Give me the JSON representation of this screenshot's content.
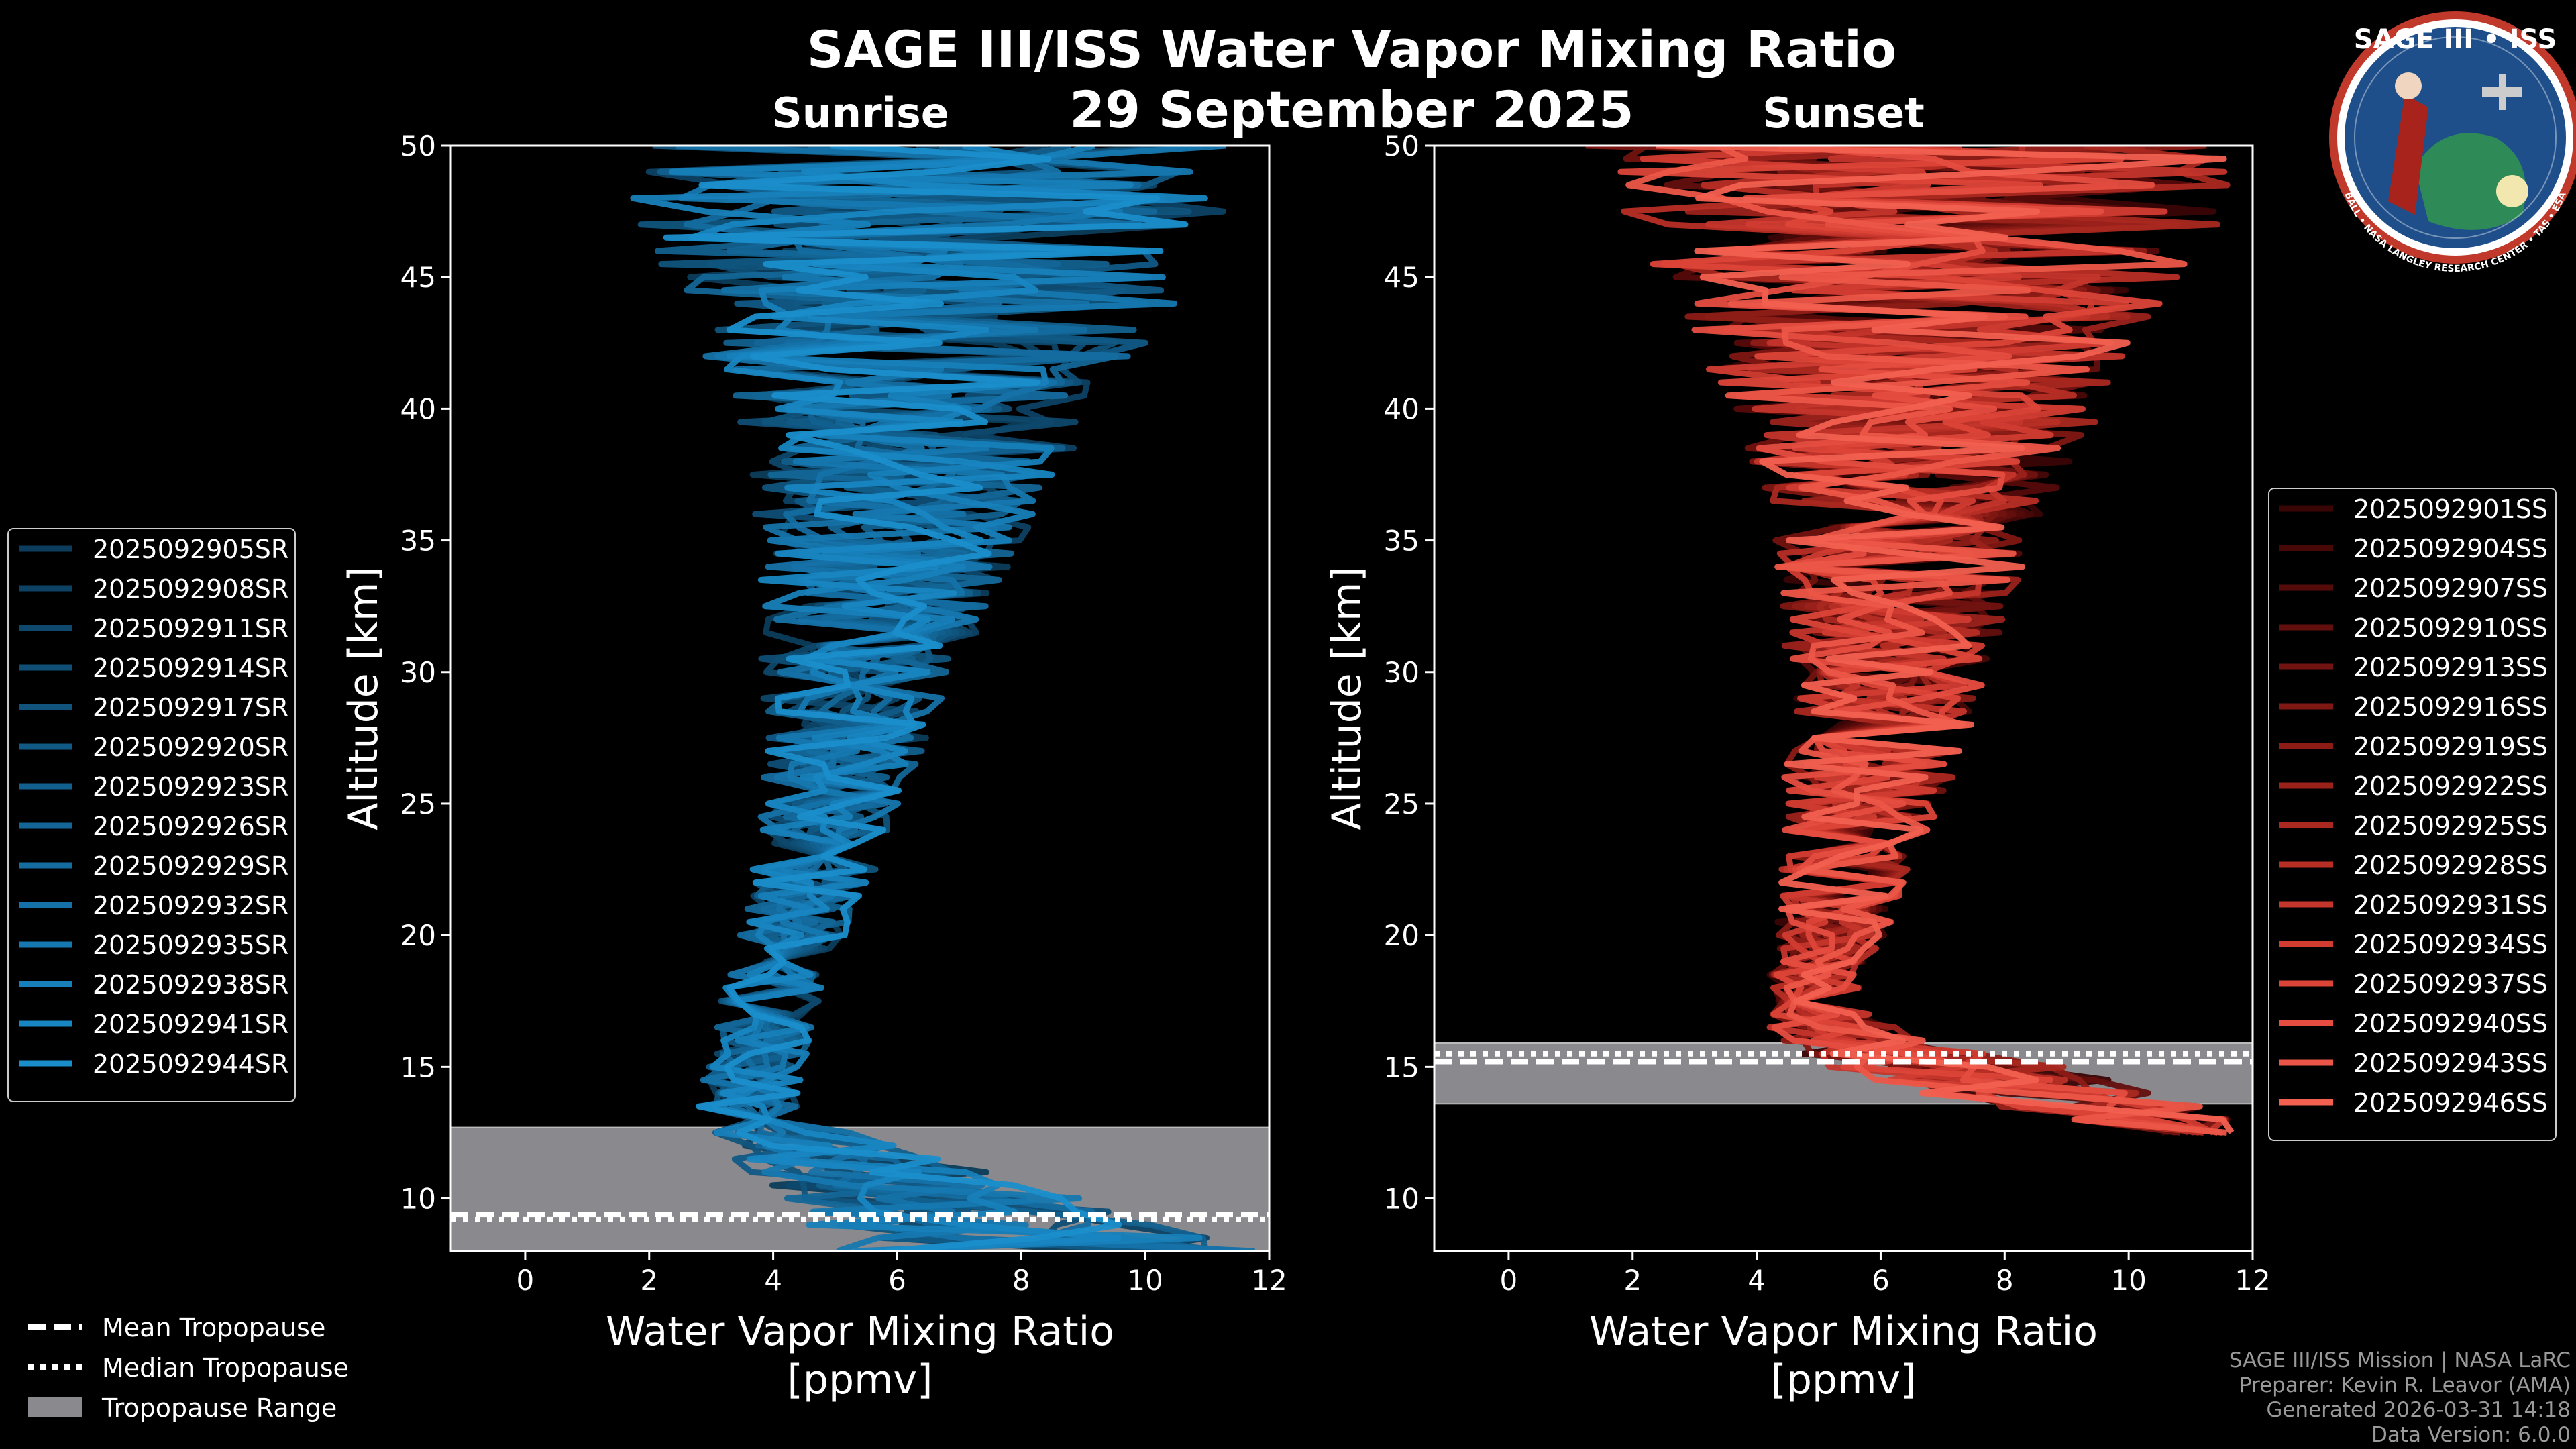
{
  "title": "SAGE III/ISS Water Vapor Mixing Ratio",
  "date": "29 September 2025",
  "logo": {
    "name": "SAGE III • ISS",
    "ring_text": "BALL • NASA LANGLEY RESEARCH CENTER • TAS • ESA",
    "colors": {
      "ring": "#c0392b",
      "inner": "#1f4f8a",
      "earth": "#2e8b57"
    }
  },
  "colors": {
    "sunrise": "#1a96d8",
    "sunset": "#f06050",
    "background": "#000000",
    "tropopause_range": "#8a8a8e"
  },
  "credits": [
    "SAGE III/ISS Mission | NASA LaRC",
    "Preparer: Kevin R. Leavor (AMA)",
    "Generated 2026-03-31 14:18",
    "Data Version: 6.0.0"
  ],
  "tropo_legend": [
    {
      "label": "Mean Tropopause",
      "style": "dashed"
    },
    {
      "label": "Median Tropopause",
      "style": "dotted"
    },
    {
      "label": "Tropopause Range",
      "style": "patch"
    }
  ],
  "chart_data": [
    {
      "type": "line",
      "panel": "sunrise",
      "title": "Sunrise",
      "xlabel": "Water Vapor Mixing Ratio\n[ppmv]",
      "ylabel": "Altitude [km]",
      "xlim": [
        -1.2,
        12
      ],
      "ylim": [
        8,
        50
      ],
      "xticks": [
        0,
        2,
        4,
        6,
        8,
        10,
        12
      ],
      "yticks": [
        10,
        15,
        20,
        25,
        30,
        35,
        40,
        45,
        50
      ],
      "tropopause": {
        "range": [
          8.0,
          12.7
        ],
        "mean": 9.4,
        "median": 9.2
      },
      "legend_position": "left",
      "profile_shape": {
        "altitudes": [
          8,
          9,
          10,
          11,
          12,
          13,
          14,
          16,
          18,
          20,
          22,
          24,
          26,
          28,
          30,
          32,
          34,
          36,
          38,
          40,
          42,
          44,
          46,
          48,
          50
        ],
        "center": [
          8.5,
          7.5,
          6.5,
          5.5,
          4.5,
          3.8,
          3.6,
          3.8,
          4.0,
          4.3,
          4.6,
          4.8,
          5.0,
          5.2,
          5.4,
          5.6,
          5.8,
          6.0,
          6.1,
          6.3,
          6.4,
          6.5,
          6.5,
          6.6,
          6.6
        ],
        "spread": [
          3.5,
          3.0,
          2.5,
          2.0,
          1.5,
          1.0,
          0.8,
          0.8,
          0.8,
          0.9,
          1.0,
          1.1,
          1.2,
          1.4,
          1.6,
          1.8,
          2.0,
          2.3,
          2.6,
          3.0,
          3.5,
          4.0,
          4.5,
          5.0,
          5.5
        ]
      },
      "series": [
        {
          "name": "2025092905SR",
          "color": "#0c3d5c"
        },
        {
          "name": "2025092908SR",
          "color": "#0d4264"
        },
        {
          "name": "2025092911SR",
          "color": "#0e486c"
        },
        {
          "name": "2025092914SR",
          "color": "#0f4e75"
        },
        {
          "name": "2025092917SR",
          "color": "#10547d"
        },
        {
          "name": "2025092920SR",
          "color": "#115a86"
        },
        {
          "name": "2025092923SR",
          "color": "#12608e"
        },
        {
          "name": "2025092926SR",
          "color": "#136697"
        },
        {
          "name": "2025092929SR",
          "color": "#146c9f"
        },
        {
          "name": "2025092932SR",
          "color": "#1572a8"
        },
        {
          "name": "2025092935SR",
          "color": "#1678b0"
        },
        {
          "name": "2025092938SR",
          "color": "#177fb9"
        },
        {
          "name": "2025092941SR",
          "color": "#1886c2"
        },
        {
          "name": "2025092944SR",
          "color": "#1a8ecb"
        }
      ]
    },
    {
      "type": "line",
      "panel": "sunset",
      "title": "Sunset",
      "xlabel": "Water Vapor Mixing Ratio\n[ppmv]",
      "ylabel": "Altitude [km]",
      "xlim": [
        -1.2,
        12
      ],
      "ylim": [
        8,
        50
      ],
      "xticks": [
        0,
        2,
        4,
        6,
        8,
        10,
        12
      ],
      "yticks": [
        10,
        15,
        20,
        25,
        30,
        35,
        40,
        45,
        50
      ],
      "tropopause": {
        "range": [
          13.6,
          15.9
        ],
        "mean": 15.2,
        "median": 15.5
      },
      "legend_position": "right",
      "profile_shape": {
        "altitudes": [
          12.5,
          13,
          14,
          15,
          16,
          17,
          18,
          20,
          22,
          24,
          26,
          28,
          30,
          32,
          34,
          36,
          38,
          40,
          42,
          44,
          46,
          48,
          50
        ],
        "center": [
          11.5,
          10.5,
          8.5,
          7.0,
          5.5,
          5.0,
          4.9,
          5.2,
          5.4,
          5.6,
          5.8,
          6.0,
          6.1,
          6.2,
          6.3,
          6.4,
          6.5,
          6.6,
          6.6,
          6.7,
          6.7,
          6.7,
          6.7
        ],
        "spread": [
          1.0,
          1.5,
          2.0,
          2.0,
          1.2,
          0.9,
          0.8,
          0.9,
          1.0,
          1.2,
          1.4,
          1.5,
          1.6,
          1.8,
          2.0,
          2.3,
          2.6,
          3.0,
          3.5,
          4.0,
          4.5,
          5.0,
          5.5
        ]
      },
      "series": [
        {
          "name": "2025092901SS",
          "color": "#3a0505"
        },
        {
          "name": "2025092904SS",
          "color": "#470807"
        },
        {
          "name": "2025092907SS",
          "color": "#550b0a"
        },
        {
          "name": "2025092910SS",
          "color": "#630f0d"
        },
        {
          "name": "2025092913SS",
          "color": "#711310"
        },
        {
          "name": "2025092916SS",
          "color": "#7f1713"
        },
        {
          "name": "2025092919SS",
          "color": "#8d1c17"
        },
        {
          "name": "2025092922SS",
          "color": "#9b221b"
        },
        {
          "name": "2025092925SS",
          "color": "#a92820"
        },
        {
          "name": "2025092928SS",
          "color": "#b72e25"
        },
        {
          "name": "2025092931SS",
          "color": "#c4352b"
        },
        {
          "name": "2025092934SS",
          "color": "#d13c31"
        },
        {
          "name": "2025092937SS",
          "color": "#dc4438"
        },
        {
          "name": "2025092940SS",
          "color": "#e54d40"
        },
        {
          "name": "2025092943SS",
          "color": "#ec5648"
        },
        {
          "name": "2025092946SS",
          "color": "#f26050"
        }
      ]
    }
  ]
}
